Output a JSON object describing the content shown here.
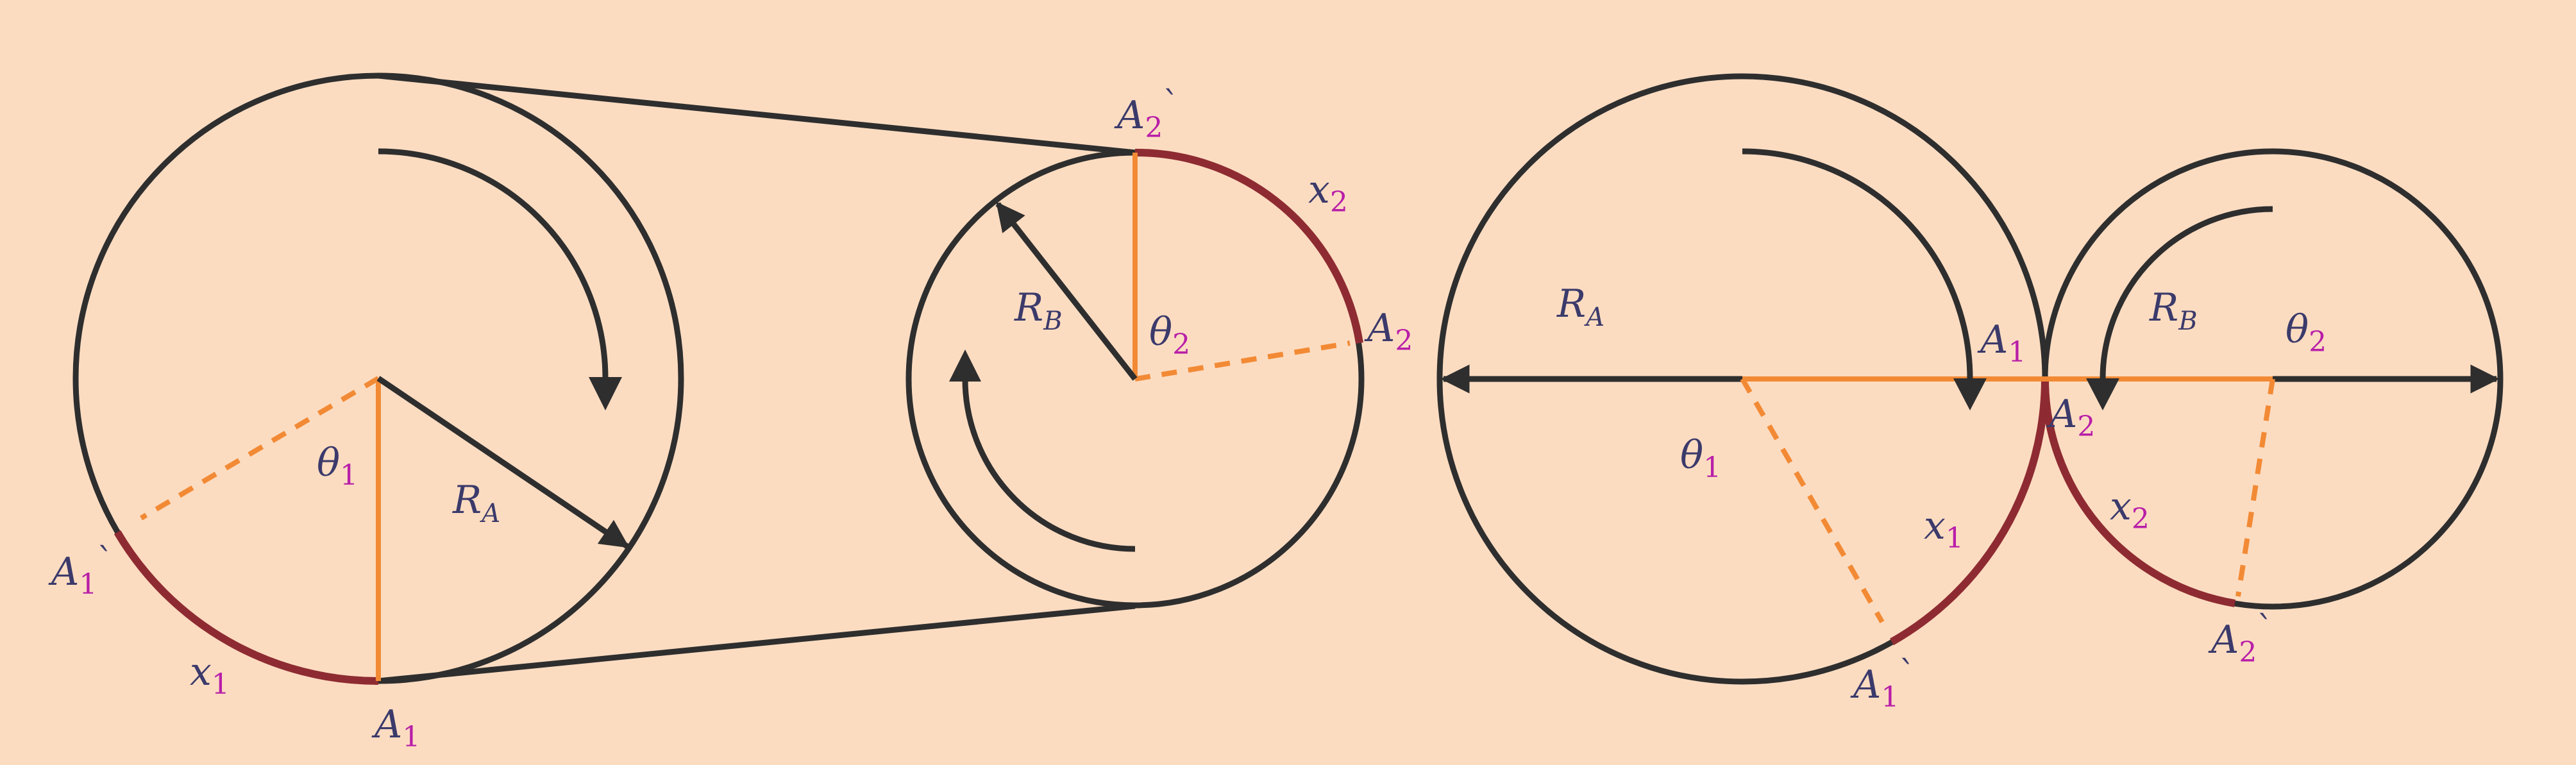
{
  "colors": {
    "background": "#fcdcc1",
    "outline": "#2e2e2e",
    "radius_line": "#f28a35",
    "arc_highlight": "#8e2b32",
    "label_text": "#3b3a6b",
    "subscript": "#b81fa8"
  },
  "left_diagram": {
    "radius_a": {
      "base": "R",
      "sub": "A"
    },
    "radius_b": {
      "base": "R",
      "sub": "B"
    },
    "theta1": {
      "base": "θ",
      "sub": "1"
    },
    "theta2": {
      "base": "θ",
      "sub": "2"
    },
    "x1": {
      "base": "x",
      "sub": "1"
    },
    "x2": {
      "base": "x",
      "sub": "2"
    },
    "a1": {
      "base": "A",
      "sub": "1"
    },
    "a1_prime": {
      "base": "A",
      "sub": "1",
      "prime": "`"
    },
    "a2": {
      "base": "A",
      "sub": "2"
    },
    "a2_prime": {
      "base": "A",
      "sub": "2",
      "prime": "`"
    }
  },
  "right_diagram": {
    "radius_a": {
      "base": "R",
      "sub": "A"
    },
    "radius_b": {
      "base": "R",
      "sub": "B"
    },
    "theta1": {
      "base": "θ",
      "sub": "1"
    },
    "theta2": {
      "base": "θ",
      "sub": "2"
    },
    "x1": {
      "base": "x",
      "sub": "1"
    },
    "x2": {
      "base": "x",
      "sub": "2"
    },
    "a1": {
      "base": "A",
      "sub": "1"
    },
    "a1_prime": {
      "base": "A",
      "sub": "1",
      "prime": "`"
    },
    "a2": {
      "base": "A",
      "sub": "2"
    },
    "a2_prime": {
      "base": "A",
      "sub": "2",
      "prime": "`"
    }
  }
}
